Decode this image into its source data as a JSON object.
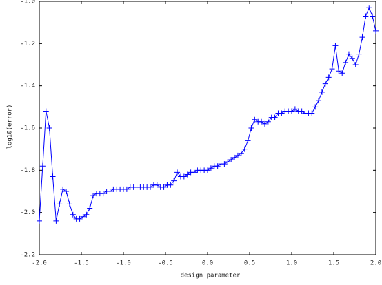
{
  "chart_data": {
    "type": "line",
    "x_label": "design parameter",
    "y_label": "log10(error)",
    "x": [
      -2.0,
      -1.96,
      -1.92,
      -1.88,
      -1.84,
      -1.8,
      -1.76,
      -1.72,
      -1.68,
      -1.64,
      -1.6,
      -1.56,
      -1.52,
      -1.48,
      -1.44,
      -1.4,
      -1.36,
      -1.32,
      -1.28,
      -1.24,
      -1.2,
      -1.16,
      -1.12,
      -1.08,
      -1.04,
      -1.0,
      -0.96,
      -0.92,
      -0.88,
      -0.84,
      -0.8,
      -0.76,
      -0.72,
      -0.68,
      -0.64,
      -0.6,
      -0.56,
      -0.52,
      -0.48,
      -0.44,
      -0.4,
      -0.36,
      -0.32,
      -0.28,
      -0.24,
      -0.2,
      -0.16,
      -0.12,
      -0.08,
      -0.04,
      0.0,
      0.04,
      0.08,
      0.12,
      0.16,
      0.2,
      0.24,
      0.28,
      0.32,
      0.36,
      0.4,
      0.44,
      0.48,
      0.52,
      0.56,
      0.6,
      0.64,
      0.68,
      0.72,
      0.76,
      0.8,
      0.84,
      0.88,
      0.92,
      0.96,
      1.0,
      1.04,
      1.08,
      1.12,
      1.16,
      1.2,
      1.24,
      1.28,
      1.32,
      1.36,
      1.4,
      1.44,
      1.48,
      1.52,
      1.56,
      1.6,
      1.64,
      1.68,
      1.72,
      1.76,
      1.8,
      1.84,
      1.88,
      1.92,
      1.96,
      2.0
    ],
    "series": [
      {
        "color": "#0000ff",
        "values": [
          -2.04,
          -1.78,
          -1.52,
          -1.6,
          -1.83,
          -2.04,
          -1.96,
          -1.89,
          -1.9,
          -1.96,
          -2.01,
          -2.03,
          -2.03,
          -2.02,
          -2.01,
          -1.98,
          -1.92,
          -1.91,
          -1.91,
          -1.91,
          -1.9,
          -1.9,
          -1.89,
          -1.89,
          -1.89,
          -1.89,
          -1.89,
          -1.88,
          -1.88,
          -1.88,
          -1.88,
          -1.88,
          -1.88,
          -1.88,
          -1.87,
          -1.87,
          -1.88,
          -1.88,
          -1.87,
          -1.87,
          -1.85,
          -1.81,
          -1.83,
          -1.83,
          -1.82,
          -1.81,
          -1.81,
          -1.8,
          -1.8,
          -1.8,
          -1.8,
          -1.79,
          -1.78,
          -1.78,
          -1.77,
          -1.77,
          -1.76,
          -1.75,
          -1.74,
          -1.73,
          -1.72,
          -1.7,
          -1.66,
          -1.6,
          -1.56,
          -1.57,
          -1.57,
          -1.58,
          -1.57,
          -1.55,
          -1.55,
          -1.53,
          -1.53,
          -1.52,
          -1.52,
          -1.52,
          -1.51,
          -1.52,
          -1.52,
          -1.53,
          -1.53,
          -1.53,
          -1.5,
          -1.47,
          -1.43,
          -1.39,
          -1.36,
          -1.32,
          -1.21,
          -1.33,
          -1.34,
          -1.29,
          -1.25,
          -1.27,
          -1.3,
          -1.25,
          -1.17,
          -1.07,
          -1.03,
          -1.07,
          -1.14
        ]
      }
    ],
    "xlim": [
      -2,
      2
    ],
    "xticks": [
      {
        "value": -2,
        "label": "-2.0"
      },
      -1.5,
      {
        "value": -1,
        "label": "-1.0"
      },
      -0.5,
      {
        "value": 0,
        "label": "0.0"
      },
      0.5,
      {
        "value": 1,
        "label": "1.0"
      },
      1.5,
      {
        "value": 2,
        "label": "2.0"
      }
    ],
    "ylim": [
      -2.2,
      -1.0
    ],
    "yticks": [
      {
        "value": -2.2,
        "label": "-2.2"
      },
      {
        "value": -2,
        "label": "-2.0"
      },
      -1.8,
      -1.6,
      -1.4,
      -1.2,
      {
        "value": -1,
        "label": "-1.0"
      }
    ],
    "marker": "+",
    "grid": false
  }
}
